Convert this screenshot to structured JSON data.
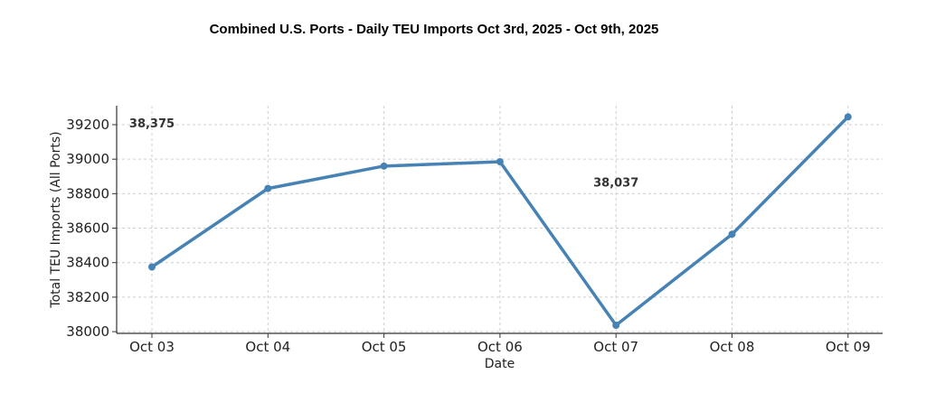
{
  "chart_data": {
    "type": "line",
    "title": "Combined U.S. Ports - Daily TEU Imports Oct 3rd, 2025 - Oct 9th, 2025",
    "xlabel": "Date",
    "ylabel": "Total TEU Imports (All Ports)",
    "categories": [
      "Oct 03",
      "Oct 04",
      "Oct 05",
      "Oct 06",
      "Oct 07",
      "Oct 08",
      "Oct 09"
    ],
    "series": [
      {
        "values": [
          38375,
          38830,
          38960,
          38985,
          38037,
          38565,
          39245
        ]
      }
    ],
    "ylim": [
      37990,
      39310
    ],
    "yticks": [
      38000,
      38200,
      38400,
      38600,
      38800,
      39000,
      39200
    ],
    "grid": true,
    "annotations": [
      {
        "text": "38,375",
        "category": "Oct 03",
        "y": 39185
      },
      {
        "text": "38,037",
        "category": "Oct 07",
        "y": 38840
      }
    ],
    "colors": {
      "line": "#4682b4"
    }
  }
}
